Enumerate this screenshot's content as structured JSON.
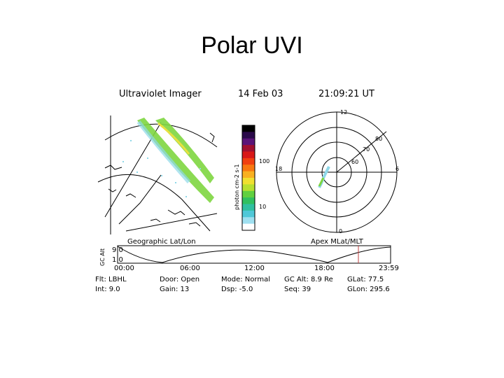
{
  "slide": {
    "title": "Polar UVI"
  },
  "header": {
    "instrument": "Ultraviolet Imager",
    "date": "14 Feb 03",
    "time": "21:09:21 UT"
  },
  "colorbar": {
    "label": "photon cm-2 s-1",
    "ticks": [
      "100",
      "10"
    ],
    "colors": [
      "#000000",
      "#2a0a4a",
      "#5a1478",
      "#a01030",
      "#d81818",
      "#f04010",
      "#f87810",
      "#f8b020",
      "#f0e030",
      "#b8e030",
      "#60d040",
      "#30c060",
      "#30c0a0",
      "#50c8d8",
      "#a0e0f0",
      "#ffffff"
    ]
  },
  "geographic": {
    "caption": "Geographic Lat/Lon"
  },
  "polar": {
    "caption": "Apex MLat/MLT",
    "labels": {
      "top": "12",
      "bottom": "0",
      "left": "18",
      "right": "6"
    },
    "rings": [
      "80",
      "70",
      "60"
    ]
  },
  "timeline": {
    "axis_label": "GC Alt",
    "y_ticks": [
      "9.0",
      "1.0"
    ],
    "x_ticks": [
      "00:00",
      "06:00",
      "12:00",
      "18:00",
      "23:59"
    ]
  },
  "footer": {
    "row1": [
      "Flt: LBHL",
      "Door: Open",
      "Mode: Normal",
      "GC Alt: 8.9 Re",
      "GLat: 77.5"
    ],
    "row2": [
      "Int: 9.0",
      "Gain: 13",
      "Dsp: -5.0",
      "Seq: 39",
      "GLon: 295.6"
    ]
  },
  "colors": {
    "aurora_green": "#7ed640",
    "aurora_cyan": "#8fd8e8",
    "aurora_yellow": "#e8e040"
  }
}
